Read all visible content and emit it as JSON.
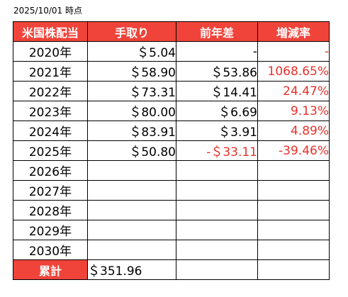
{
  "as_of": "2025/10/01 時点",
  "headers": {
    "category": "米国株配当",
    "take_home": "手取り",
    "yoy": "前年差",
    "growth": "増減率"
  },
  "rows": [
    {
      "year": "2020年",
      "take_home": "＄5.04",
      "yoy": "-",
      "growth": "-"
    },
    {
      "year": "2021年",
      "take_home": "＄58.90",
      "yoy": "＄53.86",
      "growth": "1068.65%"
    },
    {
      "year": "2022年",
      "take_home": "＄73.31",
      "yoy": "＄14.41",
      "growth": "24.47%"
    },
    {
      "year": "2023年",
      "take_home": "＄80.00",
      "yoy": "＄6.69",
      "growth": "9.13%"
    },
    {
      "year": "2024年",
      "take_home": "＄83.91",
      "yoy": "＄3.91",
      "growth": "4.89%"
    },
    {
      "year": "2025年",
      "take_home": "＄50.80",
      "yoy": "-＄33.11",
      "growth": "-39.46%"
    },
    {
      "year": "2026年",
      "take_home": "",
      "yoy": "",
      "growth": ""
    },
    {
      "year": "2027年",
      "take_home": "",
      "yoy": "",
      "growth": ""
    },
    {
      "year": "2028年",
      "take_home": "",
      "yoy": "",
      "growth": ""
    },
    {
      "year": "2029年",
      "take_home": "",
      "yoy": "",
      "growth": ""
    },
    {
      "year": "2030年",
      "take_home": "",
      "yoy": "",
      "growth": ""
    }
  ],
  "total": {
    "label": "累計",
    "take_home": "＄351.96",
    "yoy": "",
    "growth": ""
  },
  "colors": {
    "header_bg": "#f0443a",
    "header_text": "#ffffff",
    "negative_text": "#e8302a",
    "growth_text": "#e8302a",
    "border": "#000000"
  }
}
